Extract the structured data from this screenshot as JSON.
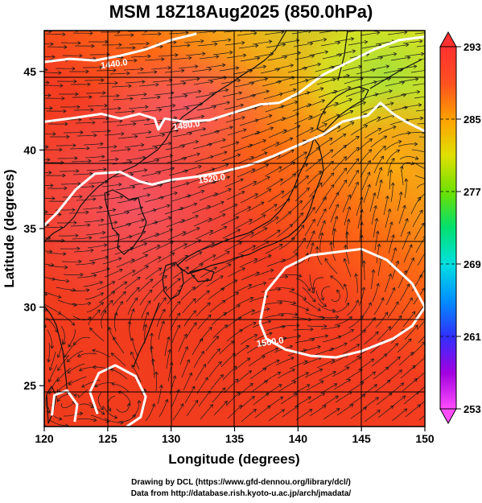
{
  "title": "MSM 18Z18Aug2025 (850.0hPa)",
  "map": {
    "xlabel": "Longitude (degrees)",
    "ylabel": "Latitude  (degrees)",
    "xlim": [
      120,
      150
    ],
    "ylim": [
      22.4,
      47.6
    ],
    "x_ticks": [
      120,
      125,
      130,
      135,
      140,
      145,
      150
    ],
    "y_ticks": [
      25,
      30,
      35,
      40,
      45
    ],
    "colors": {
      "warm": "#f03c1c",
      "hot": "#f25050",
      "mild": "#ff8a10",
      "cool": "#d8e020",
      "cooler": "#a0e040"
    }
  },
  "contours": [
    {
      "label": "1440.0",
      "points": [
        [
          120,
          45.6
        ],
        [
          122,
          45.8
        ],
        [
          124,
          45.7
        ],
        [
          126,
          46.0
        ],
        [
          128,
          46.4
        ],
        [
          130,
          47.0
        ],
        [
          132,
          47.4
        ]
      ],
      "label_at": [
        125.5,
        45.5
      ]
    },
    {
      "label": "1480.0",
      "points": [
        [
          120,
          41.8
        ],
        [
          122,
          42.0
        ],
        [
          124.5,
          42.3
        ],
        [
          126,
          42.0
        ],
        [
          127.5,
          42.3
        ],
        [
          128.7,
          42.0
        ],
        [
          129.0,
          41.3
        ],
        [
          129.5,
          42.0
        ],
        [
          131,
          41.8
        ],
        [
          133,
          41.9
        ],
        [
          135,
          42.4
        ],
        [
          137,
          42.9
        ],
        [
          138.5,
          43.0
        ],
        [
          140,
          43.6
        ],
        [
          142,
          44.8
        ],
        [
          144,
          45.6
        ],
        [
          146,
          46.4
        ],
        [
          148,
          47.0
        ],
        [
          150,
          47.2
        ]
      ],
      "label_at": [
        131.2,
        41.6
      ]
    },
    {
      "label": "1520.0",
      "points": [
        [
          120,
          35.2
        ],
        [
          121,
          36.0
        ],
        [
          122.5,
          37.5
        ],
        [
          124,
          38.5
        ],
        [
          126,
          38.6
        ],
        [
          127.5,
          38.0
        ],
        [
          128.5,
          37.8
        ],
        [
          130,
          38.1
        ],
        [
          132,
          38.3
        ],
        [
          134,
          38.6
        ],
        [
          136,
          39.0
        ],
        [
          138,
          39.6
        ],
        [
          140,
          40.3
        ],
        [
          142,
          41.0
        ],
        [
          143.5,
          41.8
        ],
        [
          144.5,
          42.0
        ],
        [
          145.5,
          42.2
        ],
        [
          146.5,
          43.0
        ],
        [
          147.5,
          42.3
        ],
        [
          148.5,
          41.8
        ],
        [
          150,
          41.2
        ]
      ],
      "label_at": [
        133.2,
        38.2
      ]
    },
    {
      "label": "1560.0",
      "points": [
        [
          137.0,
          29.0
        ],
        [
          137.5,
          31.0
        ],
        [
          139.0,
          32.5
        ],
        [
          141.0,
          33.3
        ],
        [
          143.0,
          33.5
        ],
        [
          145.0,
          33.7
        ],
        [
          147.0,
          33.0
        ],
        [
          149.0,
          31.5
        ],
        [
          150.0,
          30.0
        ],
        [
          149.0,
          28.8
        ],
        [
          147.5,
          28.0
        ],
        [
          145.0,
          27.2
        ],
        [
          143.0,
          26.8
        ],
        [
          141.0,
          26.9
        ],
        [
          139.0,
          27.3
        ],
        [
          137.5,
          28.0
        ],
        [
          137.0,
          29.0
        ]
      ],
      "label_at": [
        137.8,
        27.8
      ]
    },
    {
      "label": "",
      "points": [
        [
          124.2,
          23.2
        ],
        [
          123.6,
          24.6
        ],
        [
          124.3,
          25.8
        ],
        [
          125.6,
          26.3
        ],
        [
          127.2,
          25.6
        ],
        [
          128.0,
          24.3
        ],
        [
          127.6,
          23.0
        ],
        [
          126.5,
          22.4
        ]
      ],
      "label_at": null
    },
    {
      "label": "",
      "points": [
        [
          120.6,
          23.1
        ],
        [
          120.8,
          24.4
        ],
        [
          121.8,
          24.7
        ],
        [
          122.6,
          23.8
        ],
        [
          122.4,
          22.7
        ]
      ],
      "label_at": null
    }
  ],
  "colorbar": {
    "min": 253,
    "max": 293,
    "labels": [
      293,
      285,
      277,
      269,
      261,
      253
    ],
    "stops": [
      "#ff4dff",
      "#a200e0",
      "#3030ff",
      "#0090ff",
      "#00e0e0",
      "#00e070",
      "#70e000",
      "#e0e000",
      "#ffa000",
      "#ff5020",
      "#ff3030"
    ]
  },
  "credits": {
    "line1": "Drawing by DCL (https://www.gfd-dennou.org/library/dcl/)",
    "line2": "Data from http://database.rish.kyoto-u.ac.jp/arch/jmadata/"
  }
}
